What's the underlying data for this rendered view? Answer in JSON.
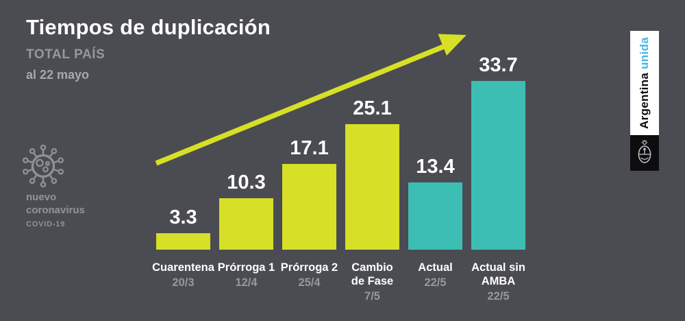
{
  "header": {
    "title": "Tiempos de duplicación",
    "subtitle": "TOTAL PAÍS",
    "date": "al 22 mayo"
  },
  "virus_label": {
    "line1": "nuevo",
    "line2": "coronavirus",
    "line3": "COVID-19"
  },
  "banner": {
    "brand_black": "Argentina",
    "brand_blue": "unida"
  },
  "colors": {
    "background": "#4B4C52",
    "bar_yellow": "#D7DF26",
    "bar_teal": "#3CBEB5",
    "arrow": "#D7DF26",
    "text_white": "#FFFFFF",
    "text_gray": "#97989C",
    "brand_blue": "#44B6E6",
    "banner_white": "#FFFFFF",
    "banner_black": "#0D0D0F"
  },
  "chart_data": {
    "type": "bar",
    "title": "Tiempos de duplicación",
    "subtitle": "TOTAL PAÍS",
    "as_of": "al 22 mayo",
    "categories": [
      "Cuarentena",
      "Prórroga 1",
      "Prórroga 2",
      "Cambio\nde Fase",
      "Actual",
      "Actual sin\nAMBA"
    ],
    "category_dates": [
      "20/3",
      "12/4",
      "25/4",
      "7/5",
      "22/5",
      "22/5"
    ],
    "values": [
      3.3,
      10.3,
      17.1,
      25.1,
      13.4,
      33.7
    ],
    "bar_colors": [
      "#D7DF26",
      "#D7DF26",
      "#D7DF26",
      "#D7DF26",
      "#3CBEB5",
      "#3CBEB5"
    ],
    "xlabel": "",
    "ylabel": "",
    "ylim": [
      0,
      35
    ],
    "grid": false,
    "legend": false,
    "annotations": [
      "upward trend arrow"
    ]
  }
}
